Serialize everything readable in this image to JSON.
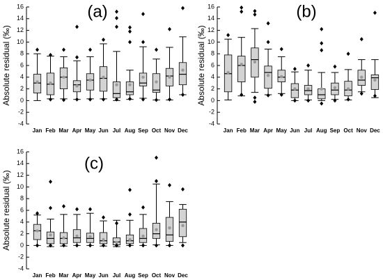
{
  "chart_data": [
    {
      "type": "box",
      "title": "(a)",
      "ylabel": "Absolute residual (‰)",
      "box_color": "#d3d3d3",
      "mean_color": "#999999",
      "ylim": [
        -4,
        16
      ],
      "yticks": [
        -4,
        -2,
        0,
        2,
        4,
        6,
        8,
        10,
        12,
        14,
        16
      ],
      "categories": [
        "Jan",
        "Feb",
        "Mar",
        "Apr",
        "May",
        "Jun",
        "Jul",
        "Aug",
        "Sep",
        "Oct",
        "Nov",
        "Dec"
      ],
      "boxes": [
        {
          "whislo": 0,
          "q1": 1.3,
          "med": 3,
          "q3": 4.5,
          "whishi": 8,
          "mean": 3.2,
          "fliers": [
            8.7
          ]
        },
        {
          "whislo": 0.3,
          "q1": 1,
          "med": 2.8,
          "q3": 4.7,
          "whishi": 7.6,
          "mean": 3,
          "fliers": [
            7.8,
            0.2
          ]
        },
        {
          "whislo": 0.3,
          "q1": 2,
          "med": 4,
          "q3": 5.6,
          "whishi": 7.5,
          "mean": 4,
          "fliers": [
            8.7,
            0.1
          ]
        },
        {
          "whislo": 0.2,
          "q1": 1.5,
          "med": 2.7,
          "q3": 3.4,
          "whishi": 6.8,
          "mean": 2.5,
          "fliers": [
            12.6,
            7.4,
            0.2
          ]
        },
        {
          "whislo": 0.3,
          "q1": 1.8,
          "med": 3.5,
          "q3": 4.6,
          "whishi": 7.5,
          "mean": 3.5,
          "fliers": [
            8.7,
            0.2
          ]
        },
        {
          "whislo": 0.3,
          "q1": 1.6,
          "med": 3.8,
          "q3": 5.8,
          "whishi": 9.7,
          "mean": 4,
          "fliers": [
            10.4,
            0.2
          ]
        },
        {
          "whislo": 0,
          "q1": 0.5,
          "med": 1.2,
          "q3": 3.2,
          "whishi": 8.4,
          "mean": 2.7,
          "fliers": [
            15.2,
            14.1,
            12.6,
            0.2
          ]
        },
        {
          "whislo": 0.2,
          "q1": 1,
          "med": 1.5,
          "q3": 3.2,
          "whishi": 5.2,
          "mean": 2.7,
          "fliers": [
            12.5,
            11.8,
            10,
            0.3
          ]
        },
        {
          "whislo": 0.4,
          "q1": 2.5,
          "med": 3,
          "q3": 4.7,
          "whishi": 9.2,
          "mean": 4,
          "fliers": [
            14.8,
            10,
            0.2
          ]
        },
        {
          "whislo": 0.1,
          "q1": 1.4,
          "med": 1.8,
          "q3": 4.6,
          "whishi": 7.1,
          "mean": 3.2,
          "fliers": [
            8.7,
            0.1
          ]
        },
        {
          "whislo": 0.1,
          "q1": 2.5,
          "med": 4.2,
          "q3": 5.5,
          "whishi": 9.1,
          "mean": 4,
          "fliers": [
            12.2,
            0.2
          ]
        },
        {
          "whislo": 1,
          "q1": 2.7,
          "med": 4.5,
          "q3": 6.5,
          "whishi": 10.9,
          "mean": 5.2,
          "fliers": [
            15.8,
            1
          ]
        }
      ]
    },
    {
      "type": "box",
      "title": "(b)",
      "ylabel": "Absolute residual (‰)",
      "box_color": "#d3d3d3",
      "mean_color": "#999999",
      "ylim": [
        -4,
        16
      ],
      "yticks": [
        -4,
        -2,
        0,
        2,
        4,
        6,
        8,
        10,
        12,
        14,
        16
      ],
      "categories": [
        "Jan",
        "Feb",
        "Mar",
        "Apr",
        "May",
        "Jun",
        "Jul",
        "Aug",
        "Sep",
        "Oct",
        "Nov",
        "Dec"
      ],
      "boxes": [
        {
          "whislo": 0.1,
          "q1": 1.5,
          "med": 4.6,
          "q3": 7.8,
          "whishi": 10.5,
          "mean": 4.8,
          "fliers": [
            11.2
          ]
        },
        {
          "whislo": 0.8,
          "q1": 3.2,
          "med": 6,
          "q3": 7.6,
          "whishi": 10.8,
          "mean": 6.2,
          "fliers": [
            15.9,
            15.2,
            1
          ]
        },
        {
          "whislo": 1.4,
          "q1": 4,
          "med": 7,
          "q3": 9,
          "whishi": 12.3,
          "mean": 6.6,
          "fliers": [
            15.3,
            14.7,
            0.5,
            -0.2
          ]
        },
        {
          "whislo": 1,
          "q1": 2.1,
          "med": 4.8,
          "q3": 5.9,
          "whishi": 8.8,
          "mean": 4.3,
          "fliers": [
            13.2,
            10,
            0.9
          ]
        },
        {
          "whislo": 1.2,
          "q1": 3.2,
          "med": 4,
          "q3": 5.2,
          "whishi": 7.5,
          "mean": 4.1,
          "fliers": [
            8.8,
            1
          ]
        },
        {
          "whislo": 0,
          "q1": 0.5,
          "med": 1.8,
          "q3": 2.9,
          "whishi": 4.9,
          "mean": 2,
          "fliers": [
            5.4,
            0
          ]
        },
        {
          "whislo": 0.1,
          "q1": 1,
          "med": 1.7,
          "q3": 2.6,
          "whishi": 5.2,
          "mean": 2,
          "fliers": [
            6,
            0
          ]
        },
        {
          "whislo": 0,
          "q1": 0.3,
          "med": 1,
          "q3": 2,
          "whishi": 4.8,
          "mean": 2,
          "fliers": [
            12.2,
            9.8,
            8.6,
            -0.5
          ]
        },
        {
          "whislo": 0.2,
          "q1": 1,
          "med": 1.8,
          "q3": 3,
          "whishi": 4.8,
          "mean": 2.2,
          "fliers": [
            5.8,
            0
          ]
        },
        {
          "whislo": 0.1,
          "q1": 0.8,
          "med": 1.8,
          "q3": 3.3,
          "whishi": 5.3,
          "mean": 2,
          "fliers": [
            8,
            0.2
          ]
        },
        {
          "whislo": 1.5,
          "q1": 2.6,
          "med": 3.5,
          "q3": 5.2,
          "whishi": 7,
          "mean": 4,
          "fliers": [
            10.5,
            1.2
          ]
        },
        {
          "whislo": 0.5,
          "q1": 1.9,
          "med": 3.9,
          "q3": 4.4,
          "whishi": 7,
          "mean": 3.5,
          "fliers": [
            15,
            0.8
          ]
        }
      ]
    },
    {
      "type": "box",
      "title": "(c)",
      "ylabel": "Absolute residual (‰)",
      "box_color": "#d3d3d3",
      "mean_color": "#999999",
      "ylim": [
        -4,
        16
      ],
      "yticks": [
        -4,
        -2,
        0,
        2,
        4,
        6,
        8,
        10,
        12,
        14,
        16
      ],
      "categories": [
        "Jan",
        "Feb",
        "Mar",
        "Apr",
        "May",
        "Jun",
        "Jul",
        "Aug",
        "Sep",
        "Oct",
        "Nov",
        "Dec"
      ],
      "boxes": [
        {
          "whislo": 0,
          "q1": 1,
          "med": 2.5,
          "q3": 3.6,
          "whishi": 5.2,
          "mean": 2.5,
          "fliers": [
            5.5,
            0
          ]
        },
        {
          "whislo": -0.2,
          "q1": 0.3,
          "med": 1.2,
          "q3": 2.3,
          "whishi": 4.5,
          "mean": 1.8,
          "fliers": [
            10.9,
            6.4,
            0
          ]
        },
        {
          "whislo": -0.1,
          "q1": 0.3,
          "med": 1.2,
          "q3": 2.2,
          "whishi": 5.3,
          "mean": 1.3,
          "fliers": [
            6.7,
            0
          ]
        },
        {
          "whislo": 0,
          "q1": 0.5,
          "med": 1.3,
          "q3": 2.7,
          "whishi": 5.3,
          "mean": 1.6,
          "fliers": [
            6.2,
            0
          ]
        },
        {
          "whislo": 0,
          "q1": 0.5,
          "med": 1.2,
          "q3": 2.1,
          "whishi": 5.5,
          "mean": 1.5,
          "fliers": [
            6.2,
            0
          ]
        },
        {
          "whislo": -0.1,
          "q1": 0.3,
          "med": 0.8,
          "q3": 2.2,
          "whishi": 4.2,
          "mean": 1,
          "fliers": [
            4.8,
            0
          ]
        },
        {
          "whislo": -0.2,
          "q1": 0.1,
          "med": 0.6,
          "q3": 1.3,
          "whishi": 4.3,
          "mean": 0.5,
          "fliers": [
            3.8,
            0
          ]
        },
        {
          "whislo": 0,
          "q1": 0.3,
          "med": 0.8,
          "q3": 1.8,
          "whishi": 4.3,
          "mean": 1,
          "fliers": [
            9.5,
            5.3,
            0
          ]
        },
        {
          "whislo": 0,
          "q1": 0.5,
          "med": 1.2,
          "q3": 2.9,
          "whishi": 5.3,
          "mean": 1.6,
          "fliers": [
            6.5,
            0
          ]
        },
        {
          "whislo": 0.1,
          "q1": 1.2,
          "med": 2,
          "q3": 3.8,
          "whishi": 10.5,
          "mean": 2.7,
          "fliers": [
            15,
            11,
            0
          ]
        },
        {
          "whislo": 0,
          "q1": 0.7,
          "med": 1.8,
          "q3": 4.8,
          "whishi": 7.5,
          "mean": 3,
          "fliers": [
            10.3,
            0
          ]
        },
        {
          "whislo": 0.5,
          "q1": 1.5,
          "med": 4,
          "q3": 6.2,
          "whishi": 7,
          "mean": 3.4,
          "fliers": [
            9.6,
            0
          ]
        }
      ]
    }
  ]
}
